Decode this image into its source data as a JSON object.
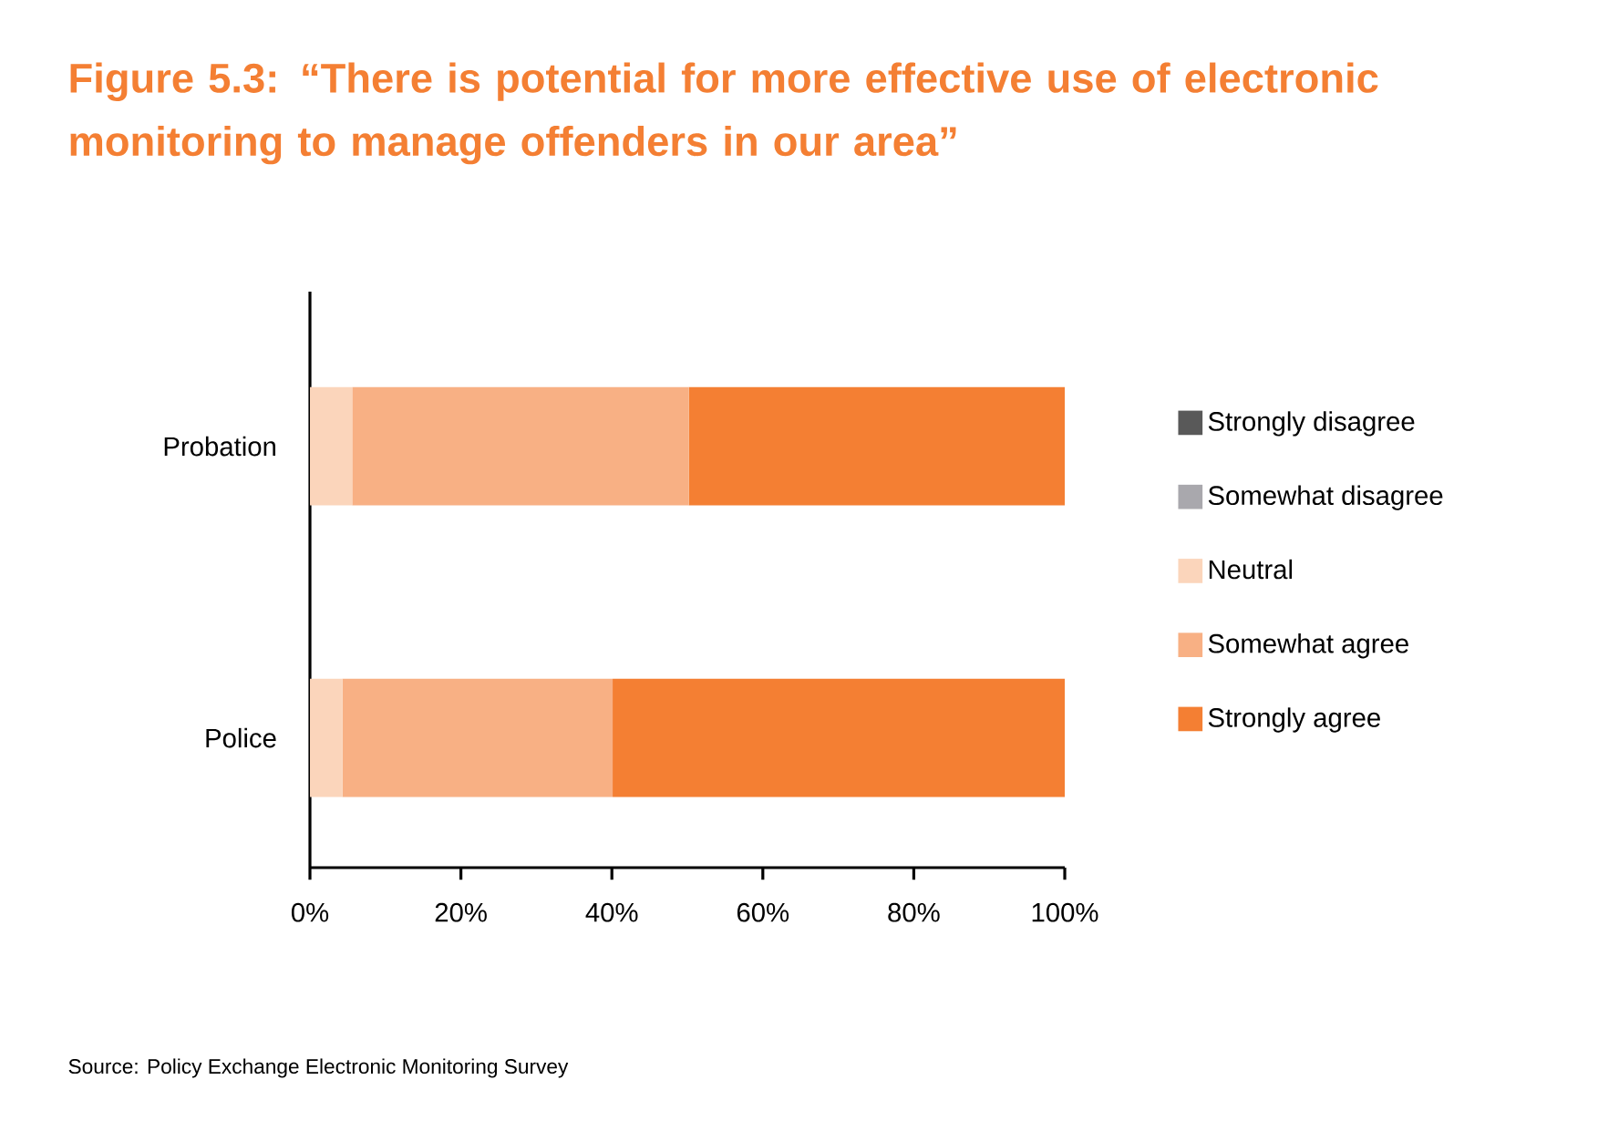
{
  "chart_data": {
    "type": "bar",
    "orientation": "horizontal",
    "stacked": true,
    "title": "Figure 5.3: “There is potential for more effective use of electronic monitoring to manage offenders in our area”",
    "categories": [
      "Probation",
      "Police"
    ],
    "series": [
      {
        "name": "Strongly disagree",
        "color": "#595959",
        "values": [
          0,
          0
        ]
      },
      {
        "name": "Somewhat disagree",
        "color": "#a9a8ad",
        "values": [
          0,
          0
        ]
      },
      {
        "name": "Neutral",
        "color": "#fbd5bb",
        "values": [
          5.6,
          4.3
        ]
      },
      {
        "name": "Somewhat agree",
        "color": "#f8b084",
        "values": [
          44.6,
          35.8
        ]
      },
      {
        "name": "Strongly agree",
        "color": "#f47f33",
        "values": [
          49.8,
          59.9
        ]
      }
    ],
    "xlim": [
      0,
      100
    ],
    "xticks": [
      {
        "value": 0,
        "label": "0%"
      },
      {
        "value": 20,
        "label": "20%"
      },
      {
        "value": 40,
        "label": "40%"
      },
      {
        "value": 60,
        "label": "60%"
      },
      {
        "value": 80,
        "label": "80%"
      },
      {
        "value": 100,
        "label": "100%"
      }
    ],
    "legend": "right",
    "annotations": [
      "Source: Policy Exchange Electronic Monitoring Survey"
    ]
  }
}
